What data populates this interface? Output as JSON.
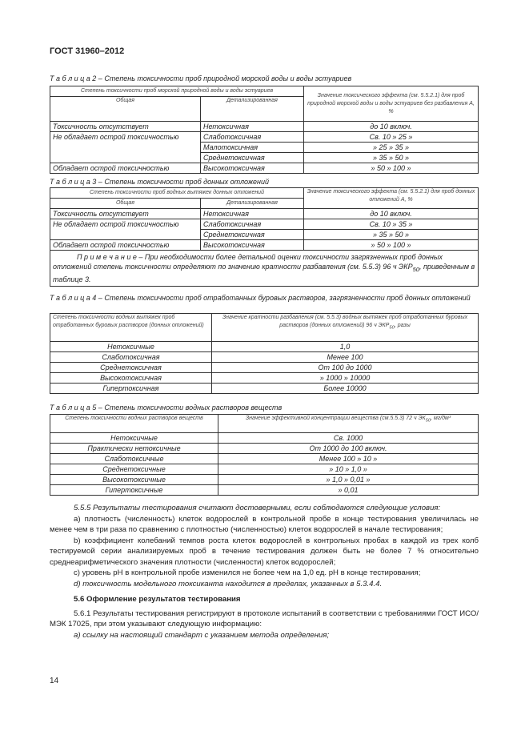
{
  "header": "ГОСТ 31960–2012",
  "t2": {
    "caption": "Т а б л и ц а  2 – Степень токсичности проб природной морской воды и воды эстуариев",
    "h1": "Степень токсичности проб морской природной воды и воды эстуариев",
    "h_general": "Общая",
    "h_detail": "Детализированная",
    "h_value": "Значение токсического эффекта (см. 5.5.2.1) для проб природной морской воды и воды эстуариев без разбавления А, %",
    "rows": [
      [
        "Токсичность отсутствует",
        "Нетоксичная",
        "до 10 включ."
      ],
      [
        "Не обладает острой токсичностью",
        "Слаботоксичная",
        "Св. 10  »   25 »"
      ],
      [
        "",
        "Малотоксичная",
        "» 25  »   35 »"
      ],
      [
        "",
        "Среднетоксичная",
        "» 35  »   50 »"
      ],
      [
        "Обладает острой токсичностью",
        "Высокотоксичная",
        "» 50  »   100 »"
      ]
    ]
  },
  "t3": {
    "caption": "Т а б л и ц а  3 – Степень токсичности проб донных отложений",
    "h1": "Степень токсичности проб водных вытяжек донных отложений",
    "h_general": "Общая",
    "h_detail": "Детализированная",
    "h_value": "Значение токсического эффекта (см. 5.5.2.1) для проб донных отложений А, %",
    "rows": [
      [
        "Токсичность отсутствует",
        "Нетоксичная",
        "до 10 включ."
      ],
      [
        "Не обладает острой токсичностью",
        "Слаботоксичная",
        "Св. 10  »   35 »"
      ],
      [
        "",
        "Среднетоксичная",
        "» 35  »   50 »"
      ],
      [
        "Обладает острой токсичностью",
        "Высокотоксичная",
        "» 50  »   100 »"
      ]
    ],
    "note": "П р и м е ч а н и е  – При необходимости более детальной оценки токсичности загрязненных проб донных отложений степень токсичности определяют по значению кратности разбавления (см. 5.5.3) 96 ч ЭКР",
    "note_sub": "50",
    "note_end": ", приведенным в таблице 3."
  },
  "t4": {
    "caption": "Т а б л и ц а  4 – Степень токсичности проб отработанных буровых растворов, загрязненности проб донных отложений",
    "h1": "Степень токсичности водных вытяжек проб отработанных буровых растворов (донных отложений)",
    "h2": "Значение кратности разбавления (см. 5.5.3) водных вытяжек проб отработанных буровых растворов (донных отложений) 96 ч ЭКР",
    "h2_sub": "50",
    "h2_end": ", разы",
    "rows": [
      [
        "Нетоксичные",
        "1,0"
      ],
      [
        "Слаботоксичная",
        "Менее 100"
      ],
      [
        "Среднетоксичная",
        "От 100  до 1000"
      ],
      [
        "Высокотоксичная",
        "» 1000 »  10000"
      ],
      [
        "Гипертоксичная",
        "Более 10000"
      ]
    ]
  },
  "t5": {
    "caption": "Т а б л и ц а  5 – Степень токсичности водных растворов веществ",
    "h1": "Степень токсичности водных растворов веществ",
    "h2": "Значение эффективной концентрации вещества (см.5.5.3) 72 ч ЭК",
    "h2_sub": "50",
    "h2_end": ", мг/дм³",
    "rows": [
      [
        "Нетоксичные",
        "Св. 1000"
      ],
      [
        "Практически нетоксичные",
        "От 1000 до 100 включ."
      ],
      [
        "Слаботоксичные",
        "Менее  100  »   10   »"
      ],
      [
        "Среднетоксичные",
        "»    10    »  1,0  »"
      ],
      [
        "Высокотоксичные",
        "»    1,0   »  0,01 »"
      ],
      [
        "Гипертоксичные",
        "»  0,01"
      ]
    ]
  },
  "text": {
    "p555": "5.5.5 Результаты тестирования считают достоверными, если соблюдаются следующие условия:",
    "pa": "а) плотность (численность) клеток водорослей в контрольной пробе в конце тестирования увеличилась не менее чем в три раза по сравнению с плотностью (численностью) клеток водорослей в начале тестирования;",
    "pb": "b) коэффициент колебаний темпов роста клеток водорослей в контрольных пробах в каждой из трех колб тестируемой серии анализируемых проб в течение тестирования должен быть не более 7 % относительно среднеарифметического значения плотности (численности) клеток водорослей;",
    "pc": "c) уровень pH в контрольной пробе изменился не более чем на 1,0 ед. pH в конце тестирования;",
    "pd": "d) токсичность модельного токсиканта находится в пределах, указанных в 5.3.4.4.",
    "s56": "5.6 Оформление результатов тестирования",
    "p561": "5.6.1 Результаты тестирования регистрируют в протоколе испытаний в соответствии с требованиями ГОСТ ИСО/МЭК 17025, при этом указывают следующую информацию:",
    "pa2": "а) ссылку на настоящий стандарт с указанием метода определения;"
  },
  "page_number": "14"
}
